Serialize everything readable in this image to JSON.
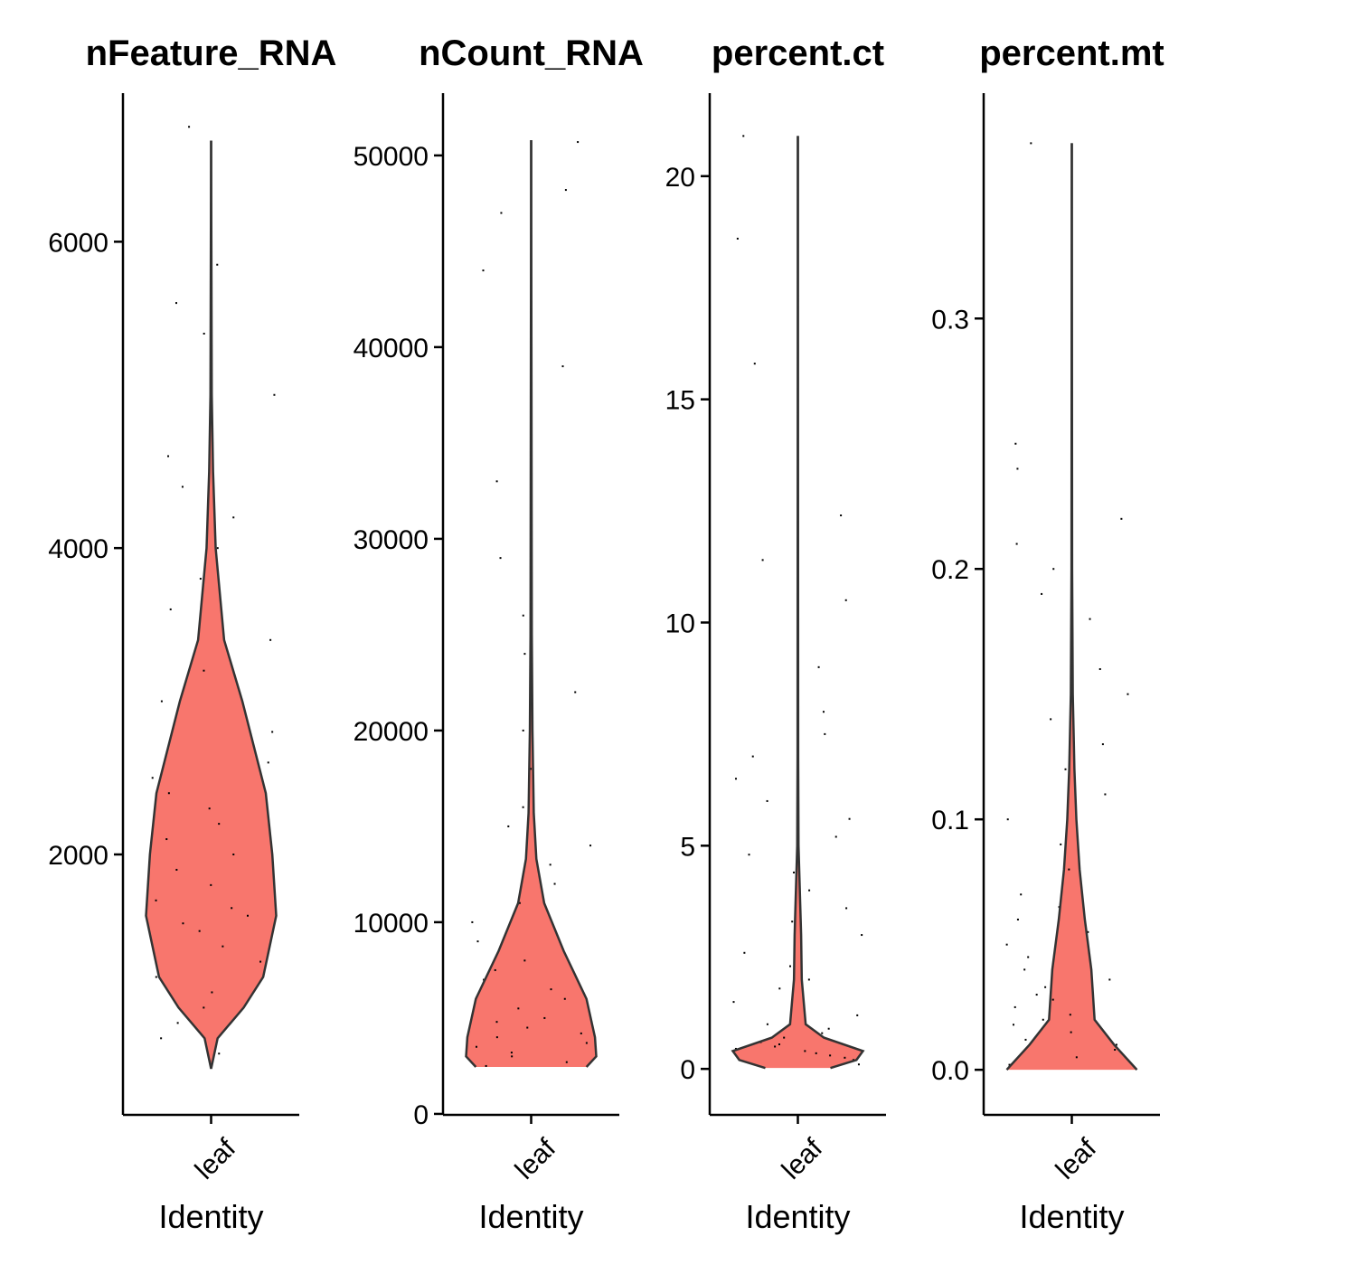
{
  "chart_data": [
    {
      "type": "violin",
      "title": "nFeature_RNA",
      "xlabel": "Identity",
      "categories": [
        "leaf"
      ],
      "color": "#f8766d",
      "ylim": [
        300,
        6970
      ],
      "yticks": [
        2000,
        4000,
        6000
      ],
      "density_y": [
        600,
        800,
        1000,
        1200,
        1600,
        2000,
        2400,
        3000,
        3400,
        4000,
        4500,
        5000,
        6660
      ],
      "density": [
        0,
        0.1,
        0.5,
        0.8,
        1,
        0.94,
        0.84,
        0.48,
        0.2,
        0.07,
        0.03,
        0.01,
        0
      ],
      "points": [
        650,
        700,
        800,
        900,
        1000,
        1100,
        1200,
        1300,
        1400,
        1500,
        1550,
        1600,
        1650,
        1700,
        1800,
        1900,
        2000,
        2100,
        2200,
        2300,
        2400,
        2500,
        2600,
        2800,
        3000,
        3200,
        3400,
        3600,
        3800,
        4000,
        4200,
        4400,
        4600,
        5000,
        5400,
        5600,
        5850,
        6750
      ]
    },
    {
      "type": "violin",
      "title": "nCount_RNA",
      "xlabel": "Identity",
      "categories": [
        "leaf"
      ],
      "color": "#f8766d",
      "ylim": [
        -50,
        53250
      ],
      "yticks": [
        0,
        10000,
        20000,
        30000,
        40000,
        50000
      ],
      "density_y": [
        2450,
        3000,
        4000,
        6000,
        8500,
        11000,
        13300,
        15700,
        20000,
        25000,
        50800
      ],
      "density": [
        0.85,
        1,
        0.98,
        0.85,
        0.5,
        0.2,
        0.08,
        0.04,
        0.02,
        0.01,
        0
      ],
      "points": [
        2500,
        2700,
        3000,
        3200,
        3500,
        3700,
        4000,
        4200,
        4500,
        4800,
        5000,
        5500,
        6000,
        6500,
        7000,
        7500,
        8000,
        9000,
        10000,
        11000,
        12000,
        13000,
        14000,
        15000,
        16000,
        18000,
        20000,
        22000,
        24000,
        26000,
        29000,
        33000,
        39000,
        44000,
        47000,
        48200,
        50700
      ]
    },
    {
      "type": "violin",
      "title": "percent.ct",
      "xlabel": "Identity",
      "categories": [
        "leaf"
      ],
      "color": "#f8766d",
      "ylim": [
        -1.03,
        21.86
      ],
      "yticks": [
        0,
        5,
        10,
        15,
        20
      ],
      "density_y": [
        0.02,
        0.2,
        0.4,
        0.7,
        1,
        2,
        3,
        4,
        5,
        7,
        20.9
      ],
      "density": [
        0.5,
        0.9,
        1,
        0.4,
        0.12,
        0.06,
        0.05,
        0.03,
        0.01,
        0.005,
        0
      ],
      "points": [
        0.1,
        0.2,
        0.25,
        0.3,
        0.35,
        0.4,
        0.45,
        0.5,
        0.55,
        0.6,
        0.7,
        0.8,
        0.9,
        1,
        1.2,
        1.5,
        1.8,
        2,
        2.3,
        2.6,
        3,
        3.3,
        3.6,
        4,
        4.4,
        4.8,
        5.2,
        5.6,
        6,
        6.5,
        7,
        7.5,
        8,
        9,
        10.5,
        11.4,
        12.4,
        15.8,
        18.6,
        20.9
      ]
    },
    {
      "type": "violin",
      "title": "percent.mt",
      "xlabel": "Identity",
      "categories": [
        "leaf"
      ],
      "color": "#f8766d",
      "ylim": [
        -0.018,
        0.39
      ],
      "yticks": [
        {
          "value": 0,
          "label": "0.0"
        },
        0.1,
        0.2,
        0.3
      ],
      "density_y": [
        0,
        0.01,
        0.02,
        0.04,
        0.06,
        0.08,
        0.1,
        0.12,
        0.15,
        0.2,
        0.37
      ],
      "density": [
        1,
        0.65,
        0.35,
        0.3,
        0.2,
        0.12,
        0.07,
        0.04,
        0.015,
        0.005,
        0
      ],
      "points": [
        0.002,
        0.005,
        0.008,
        0.01,
        0.012,
        0.015,
        0.018,
        0.02,
        0.022,
        0.025,
        0.028,
        0.03,
        0.033,
        0.036,
        0.04,
        0.045,
        0.05,
        0.055,
        0.06,
        0.065,
        0.07,
        0.08,
        0.09,
        0.1,
        0.11,
        0.12,
        0.13,
        0.14,
        0.15,
        0.16,
        0.18,
        0.19,
        0.2,
        0.21,
        0.22,
        0.24,
        0.25,
        0.37
      ]
    }
  ]
}
